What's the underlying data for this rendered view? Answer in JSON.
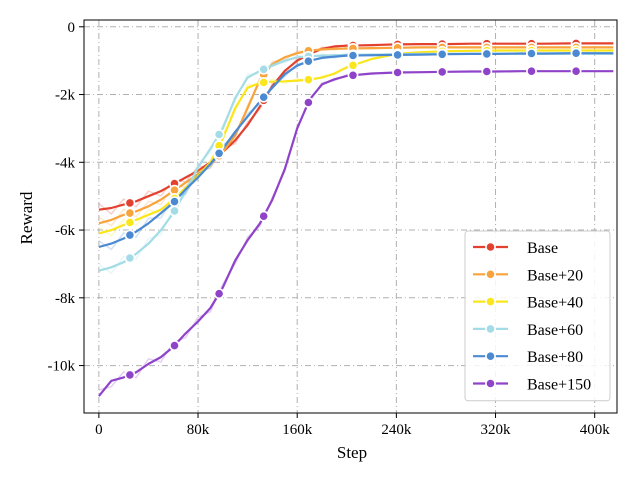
{
  "chart_data": {
    "type": "line",
    "xlabel": "Step",
    "ylabel": "Reward",
    "xlim": [
      -12000,
      418000
    ],
    "ylim": [
      -11400,
      200
    ],
    "x_ticks": [
      {
        "value": 0,
        "label": "0"
      },
      {
        "value": 80000,
        "label": "80k"
      },
      {
        "value": 160000,
        "label": "160k"
      },
      {
        "value": 240000,
        "label": "240k"
      },
      {
        "value": 320000,
        "label": "320k"
      },
      {
        "value": 400000,
        "label": "400k"
      }
    ],
    "y_ticks": [
      {
        "value": 0,
        "label": "0"
      },
      {
        "value": -2000,
        "label": "-2k"
      },
      {
        "value": -4000,
        "label": "-4k"
      },
      {
        "value": -6000,
        "label": "-6k"
      },
      {
        "value": -8000,
        "label": "-8k"
      },
      {
        "value": -10000,
        "label": "-10k"
      }
    ],
    "grid": true,
    "legend_position": "bottom-right",
    "x": [
      0,
      10000,
      20000,
      30000,
      40000,
      50000,
      60000,
      70000,
      80000,
      90000,
      100000,
      110000,
      120000,
      130000,
      140000,
      150000,
      160000,
      170000,
      180000,
      190000,
      200000,
      220000,
      240000,
      260000,
      280000,
      300000,
      320000,
      340000,
      360000,
      380000,
      400000,
      415000
    ],
    "markers_x": [
      25000,
      61000,
      97000,
      133000,
      169000,
      205000,
      241000,
      277000,
      313000,
      349000,
      385000
    ],
    "series": [
      {
        "name": "Base",
        "color": "#e3412f",
        "values": [
          -5400,
          -5350,
          -5250,
          -5150,
          -5000,
          -4850,
          -4650,
          -4450,
          -4250,
          -4000,
          -3700,
          -3350,
          -2900,
          -2350,
          -1750,
          -1300,
          -1000,
          -800,
          -650,
          -580,
          -560,
          -540,
          -520,
          -510,
          -510,
          -500,
          -500,
          -500,
          -500,
          -490,
          -490,
          -490
        ]
      },
      {
        "name": "Base+20",
        "color": "#f8a33c",
        "values": [
          -5800,
          -5700,
          -5550,
          -5450,
          -5300,
          -5100,
          -4850,
          -4600,
          -4350,
          -4050,
          -3700,
          -3200,
          -2400,
          -1550,
          -1100,
          -900,
          -780,
          -700,
          -670,
          -650,
          -640,
          -630,
          -620,
          -610,
          -610,
          -610,
          -610,
          -610,
          -610,
          -610,
          -610,
          -610
        ]
      },
      {
        "name": "Base+40",
        "color": "#fbe61c",
        "values": [
          -6100,
          -6000,
          -5850,
          -5700,
          -5550,
          -5400,
          -5100,
          -4750,
          -4400,
          -4000,
          -3300,
          -2400,
          -1800,
          -1650,
          -1620,
          -1610,
          -1590,
          -1560,
          -1500,
          -1380,
          -1200,
          -950,
          -800,
          -750,
          -720,
          -710,
          -700,
          -700,
          -700,
          -700,
          -700,
          -700
        ]
      },
      {
        "name": "Base+60",
        "color": "#a3dce6",
        "values": [
          -7200,
          -7100,
          -6950,
          -6700,
          -6400,
          -6000,
          -5500,
          -4850,
          -4150,
          -3600,
          -3000,
          -2100,
          -1500,
          -1300,
          -1150,
          -1000,
          -900,
          -870,
          -850,
          -840,
          -830,
          -820,
          -810,
          -800,
          -800,
          -800,
          -800,
          -800,
          -800,
          -800,
          -800,
          -800
        ]
      },
      {
        "name": "Base+80",
        "color": "#4b8ad2",
        "values": [
          -6500,
          -6400,
          -6250,
          -6050,
          -5800,
          -5500,
          -5200,
          -4800,
          -4450,
          -4050,
          -3600,
          -3100,
          -2650,
          -2200,
          -1800,
          -1400,
          -1150,
          -1000,
          -920,
          -880,
          -850,
          -840,
          -830,
          -820,
          -810,
          -800,
          -800,
          -790,
          -790,
          -780,
          -780,
          -780
        ]
      },
      {
        "name": "Base+150",
        "color": "#8f43c9",
        "values": [
          -10900,
          -10450,
          -10350,
          -10200,
          -9950,
          -9750,
          -9450,
          -9050,
          -8700,
          -8300,
          -7700,
          -6900,
          -6300,
          -5800,
          -5100,
          -4200,
          -3000,
          -2150,
          -1700,
          -1550,
          -1450,
          -1380,
          -1350,
          -1340,
          -1330,
          -1320,
          -1320,
          -1310,
          -1310,
          -1310,
          -1310,
          -1310
        ]
      }
    ]
  }
}
